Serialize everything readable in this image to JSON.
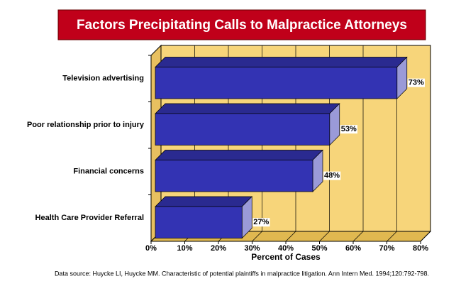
{
  "chart_data": {
    "type": "bar",
    "orientation": "horizontal",
    "title": "Factors Precipitating Calls to Malpractice Attorneys",
    "categories": [
      "Television advertising",
      "Poor relationship prior to injury",
      "Financial concerns",
      "Health Care Provider Referral"
    ],
    "values": [
      73,
      53,
      48,
      27
    ],
    "value_labels": [
      "73%",
      "53%",
      "48%",
      "27%"
    ],
    "color": "#3333b3",
    "xlabel": "Percent of Cases",
    "xlim": [
      0,
      80
    ],
    "xticks": [
      {
        "value": 0,
        "label": "0%"
      },
      {
        "value": 10,
        "label": "10%"
      },
      {
        "value": 20,
        "label": "20%"
      },
      {
        "value": 30,
        "label": "30%"
      },
      {
        "value": 40,
        "label": "40%"
      },
      {
        "value": 50,
        "label": "50%"
      },
      {
        "value": 60,
        "label": "60%"
      },
      {
        "value": 70,
        "label": "70%"
      },
      {
        "value": 80,
        "label": "80%"
      }
    ],
    "grid": true,
    "source": "Data source: Huycke LI, Huycke MM.  Characteristic of potential plaintiffs in malpractice litigation.  Ann Intern Med. 1994;120:792-798."
  }
}
